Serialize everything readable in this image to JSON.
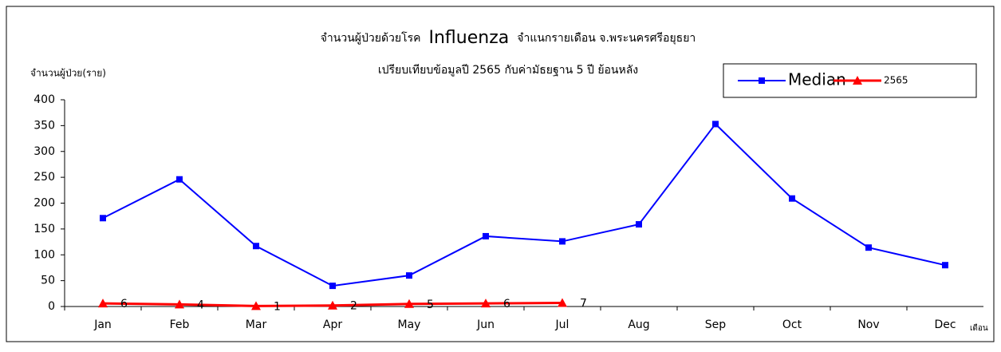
{
  "chart_data": {
    "type": "line",
    "title": [
      "จำนวนผู้ป่วยด้วยโรค",
      "Influenza",
      "จำแนกรายเดือน  จ.พระนครศรีอยุธยา"
    ],
    "subtitle": "เปรียบเทียบข้อมูลปี  2565  กับค่ามัธยฐาน 5 ปี ย้อนหลัง",
    "y_label": "จำนวนผู้ป่วย(ราย)",
    "x_label": "เดือน",
    "categories": [
      "Jan",
      "Feb",
      "Mar",
      "Apr",
      "May",
      "Jun",
      "Jul",
      "Aug",
      "Sep",
      "Oct",
      "Nov",
      "Dec"
    ],
    "series": [
      {
        "name": "Median",
        "color": "#0000ff",
        "marker": "square",
        "values": [
          171,
          246,
          117,
          40,
          60,
          136,
          126,
          159,
          353,
          209,
          114,
          80
        ]
      },
      {
        "name": "2565",
        "color": "#ff0000",
        "marker": "triangle",
        "data_labels": true,
        "values": [
          6,
          4,
          1,
          2,
          5,
          6,
          7,
          null,
          null,
          null,
          null,
          null
        ]
      }
    ],
    "ylim": [
      0,
      400
    ],
    "yticks": [
      0,
      50,
      100,
      150,
      200,
      250,
      300,
      350,
      400
    ],
    "legend": "top-right"
  }
}
